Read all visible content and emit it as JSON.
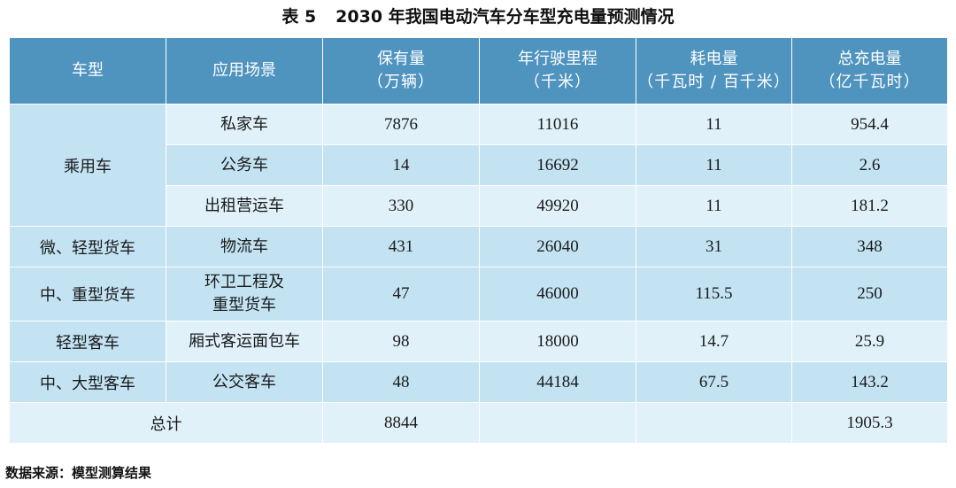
{
  "caption": {
    "label": "表 5",
    "title": "2030 年我国电动汽车分车型充电量预测情况"
  },
  "headers": [
    {
      "name": "车型",
      "unit": ""
    },
    {
      "name": "应用场景",
      "unit": ""
    },
    {
      "name": "保有量",
      "unit": "（万辆）"
    },
    {
      "name": "年行驶里程",
      "unit": "（千米）"
    },
    {
      "name": "耗电量",
      "unit": "（千瓦时 / 百千米）"
    },
    {
      "name": "总充电量",
      "unit": "（亿千瓦时）"
    }
  ],
  "groups": [
    {
      "vehicle_type": "乘用车",
      "rows": [
        {
          "scene": "私家车",
          "stock": "7876",
          "mileage": "11016",
          "consumption": "11",
          "total": "954.4"
        },
        {
          "scene": "公务车",
          "stock": "14",
          "mileage": "16692",
          "consumption": "11",
          "total": "2.6"
        },
        {
          "scene": "出租营运车",
          "stock": "330",
          "mileage": "49920",
          "consumption": "11",
          "total": "181.2"
        }
      ]
    },
    {
      "vehicle_type": "微、轻型货车",
      "rows": [
        {
          "scene": "物流车",
          "stock": "431",
          "mileage": "26040",
          "consumption": "31",
          "total": "348"
        }
      ]
    },
    {
      "vehicle_type": "中、重型货车",
      "rows": [
        {
          "scene_line1": "环卫工程及",
          "scene_line2": "重型货车",
          "stock": "47",
          "mileage": "46000",
          "consumption": "115.5",
          "total": "250"
        }
      ]
    },
    {
      "vehicle_type": "轻型客车",
      "rows": [
        {
          "scene": "厢式客运面包车",
          "stock": "98",
          "mileage": "18000",
          "consumption": "14.7",
          "total": "25.9"
        }
      ]
    },
    {
      "vehicle_type": "中、大型客车",
      "rows": [
        {
          "scene": "公交客车",
          "stock": "48",
          "mileage": "44184",
          "consumption": "67.5",
          "total": "143.2"
        }
      ]
    }
  ],
  "totals": {
    "label": "总计",
    "stock": "8844",
    "mileage": "",
    "consumption": "",
    "total": "1905.3"
  },
  "source": "数据来源：模型测算结果",
  "colors": {
    "header_bg": "#4f93bf",
    "row_light": "#c3e3f3",
    "row_pale": "#e1f1fa"
  }
}
